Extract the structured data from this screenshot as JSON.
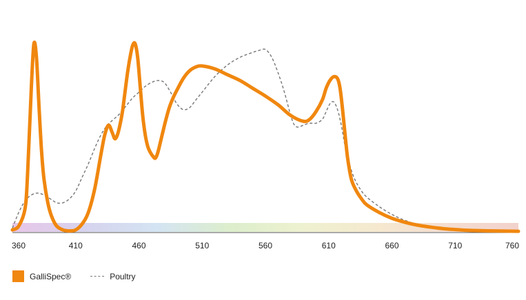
{
  "chart_data": {
    "type": "line",
    "title": "",
    "xlabel": "",
    "ylabel": "",
    "xlim": [
      360,
      760
    ],
    "ylim": [
      0,
      1
    ],
    "x_ticks": [
      "360",
      "410",
      "460",
      "510",
      "560",
      "610",
      "660",
      "710",
      "760"
    ],
    "grid": false,
    "legend_position": "bottom-left",
    "spectrum_band": true,
    "series": [
      {
        "name": "GalliSpec®",
        "style": "solid",
        "color": "#F0870F",
        "x": [
          360,
          365,
          370,
          372,
          375,
          377,
          379,
          381,
          383,
          385,
          388,
          391,
          395,
          400,
          405,
          410,
          415,
          420,
          425,
          430,
          433,
          436,
          439,
          441,
          443,
          445,
          447,
          449,
          451,
          453,
          455,
          457,
          459,
          461,
          463,
          465,
          467,
          469,
          471,
          473,
          475,
          478,
          481,
          484,
          487,
          490,
          495,
          500,
          505,
          510,
          520,
          530,
          540,
          550,
          560,
          570,
          580,
          590,
          595,
          600,
          605,
          608,
          611,
          614,
          617,
          619,
          621,
          623,
          625,
          628,
          632,
          636,
          640,
          650,
          660,
          670,
          680,
          690,
          700,
          710,
          720,
          730,
          740,
          750,
          760
        ],
        "y": [
          0.01,
          0.03,
          0.12,
          0.3,
          0.75,
          0.97,
          0.9,
          0.65,
          0.42,
          0.27,
          0.15,
          0.08,
          0.03,
          0.01,
          0.005,
          0.01,
          0.04,
          0.1,
          0.22,
          0.4,
          0.5,
          0.55,
          0.51,
          0.48,
          0.5,
          0.55,
          0.62,
          0.72,
          0.82,
          0.9,
          0.96,
          0.97,
          0.9,
          0.75,
          0.6,
          0.5,
          0.44,
          0.41,
          0.39,
          0.38,
          0.41,
          0.49,
          0.57,
          0.64,
          0.69,
          0.73,
          0.79,
          0.83,
          0.85,
          0.855,
          0.84,
          0.81,
          0.78,
          0.74,
          0.7,
          0.655,
          0.6,
          0.57,
          0.58,
          0.62,
          0.68,
          0.74,
          0.78,
          0.8,
          0.79,
          0.74,
          0.63,
          0.5,
          0.38,
          0.27,
          0.21,
          0.17,
          0.14,
          0.1,
          0.07,
          0.05,
          0.035,
          0.025,
          0.017,
          0.012,
          0.008,
          0.006,
          0.005,
          0.004,
          0.003
        ]
      },
      {
        "name": "Poultry",
        "style": "dashed",
        "color": "#777777",
        "x": [
          360,
          365,
          370,
          375,
          380,
          385,
          390,
          395,
          400,
          405,
          410,
          415,
          420,
          425,
          430,
          435,
          440,
          445,
          450,
          455,
          460,
          465,
          470,
          475,
          480,
          485,
          490,
          495,
          500,
          505,
          510,
          520,
          530,
          540,
          550,
          555,
          560,
          565,
          570,
          575,
          580,
          583,
          586,
          590,
          595,
          600,
          605,
          608,
          611,
          614,
          617,
          620,
          623,
          626,
          630,
          635,
          640,
          650,
          660,
          670,
          680,
          690,
          700,
          710,
          720,
          730,
          740,
          750,
          760
        ],
        "y": [
          0.02,
          0.1,
          0.16,
          0.19,
          0.2,
          0.19,
          0.17,
          0.15,
          0.15,
          0.17,
          0.21,
          0.28,
          0.35,
          0.43,
          0.5,
          0.55,
          0.58,
          0.61,
          0.65,
          0.69,
          0.72,
          0.75,
          0.77,
          0.78,
          0.77,
          0.72,
          0.66,
          0.63,
          0.64,
          0.68,
          0.72,
          0.8,
          0.86,
          0.9,
          0.925,
          0.935,
          0.94,
          0.9,
          0.82,
          0.72,
          0.6,
          0.55,
          0.54,
          0.55,
          0.56,
          0.56,
          0.58,
          0.62,
          0.66,
          0.67,
          0.63,
          0.55,
          0.44,
          0.36,
          0.28,
          0.22,
          0.18,
          0.13,
          0.09,
          0.06,
          0.04,
          0.027,
          0.018,
          0.012,
          0.008,
          0.005,
          0.003,
          0.002,
          0.001
        ]
      }
    ]
  },
  "legend": {
    "items": [
      {
        "label": "GalliSpec®",
        "color": "#F0870F",
        "style": "solid"
      },
      {
        "label": "Poultry",
        "color": "#777777",
        "style": "dashed"
      }
    ]
  },
  "spectrum_colors": [
    "#e8c6e8",
    "#d6d3ee",
    "#d4e4f3",
    "#dceecc",
    "#eef1cf",
    "#f5e9cf",
    "#f4ddd1",
    "#f2d2cc"
  ]
}
